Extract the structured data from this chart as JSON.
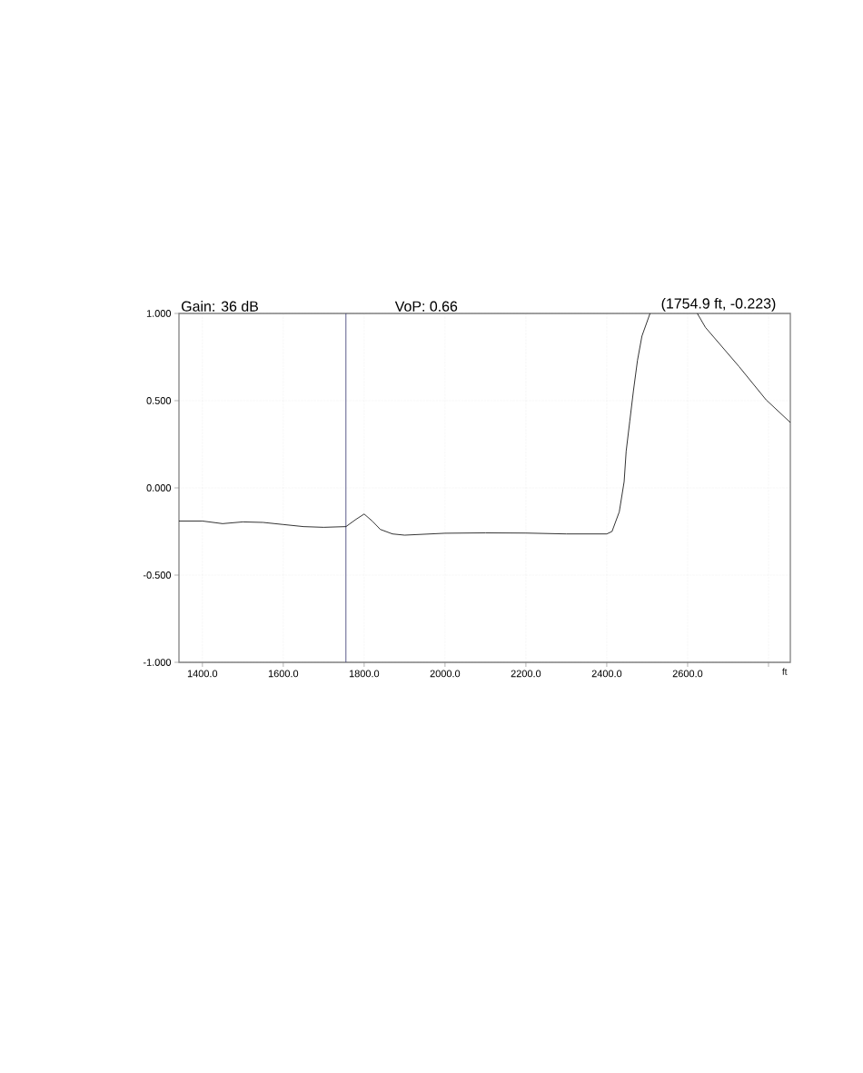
{
  "chart_data": {
    "type": "line",
    "xlabel": "ft",
    "annotations": [
      "Gain: 36 dB",
      "VoP: 0.66",
      "(1754.9 ft, -0.223)"
    ],
    "x": [
      1342,
      1400,
      1450,
      1500,
      1550,
      1600,
      1650,
      1700,
      1755,
      1780,
      1800,
      1820,
      1840,
      1870,
      1900,
      2000,
      2100,
      2200,
      2300,
      2400,
      2413,
      2431,
      2443,
      2448,
      2457,
      2466,
      2476,
      2487,
      2507,
      2550,
      2624,
      2644,
      2727,
      2794,
      2854
    ],
    "series": [
      {
        "color": "#000000",
        "values": [
          -0.19,
          -0.19,
          -0.205,
          -0.195,
          -0.198,
          -0.21,
          -0.222,
          -0.226,
          -0.222,
          -0.18,
          -0.15,
          -0.19,
          -0.238,
          -0.264,
          -0.271,
          -0.26,
          -0.258,
          -0.259,
          -0.264,
          -0.264,
          -0.25,
          -0.137,
          0.036,
          0.21,
          0.384,
          0.557,
          0.731,
          0.87,
          1.0,
          null,
          1.0,
          0.92,
          0.696,
          0.505,
          0.375
        ]
      }
    ],
    "xlim": [
      1342,
      2854
    ],
    "ylim": [
      -1,
      1
    ],
    "xticks": [
      {
        "value": 1400,
        "label": "1400.0"
      },
      {
        "value": 1600,
        "label": "1600.0"
      },
      {
        "value": 1800,
        "label": "1800.0"
      },
      {
        "value": 2000,
        "label": "2000.0"
      },
      {
        "value": 2200,
        "label": "2200.0"
      },
      {
        "value": 2400,
        "label": "2400.0"
      },
      {
        "value": 2600,
        "label": "2600.0"
      },
      {
        "value": 2800,
        "label": null
      }
    ],
    "yticks": [
      {
        "value": -1,
        "label": "-1.000"
      },
      {
        "value": -0.5,
        "label": "-0.500"
      },
      {
        "value": 0,
        "label": "0.000"
      },
      {
        "value": 0.5,
        "label": "0.500"
      },
      {
        "value": 1,
        "label": "1.000"
      }
    ],
    "ref_lines": [
      {
        "axis": "x",
        "value": 1754.9,
        "color": "#4a4a80"
      }
    ],
    "grid": true,
    "marker": "none",
    "line_style": "solid"
  }
}
